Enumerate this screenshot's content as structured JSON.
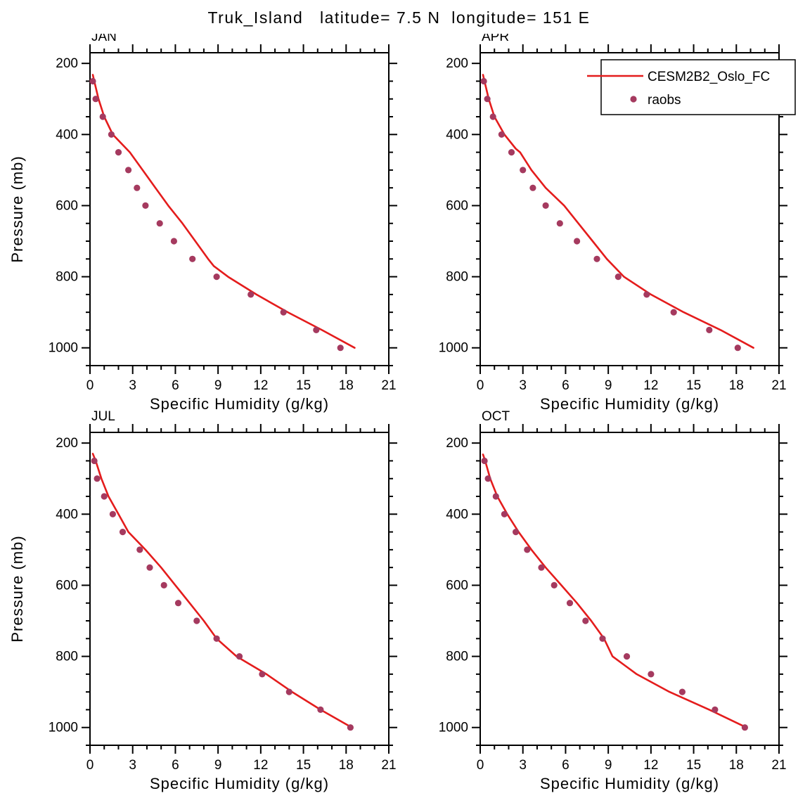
{
  "page_title": "Truk_Island   latitude= 7.5 N  longitude= 151 E",
  "legend": {
    "entries": [
      {
        "label": "CESM2B2_Oslo_FC",
        "type": "line",
        "color": "#e41c1c"
      },
      {
        "label": "raobs",
        "type": "dot",
        "color": "#a53a5f"
      }
    ]
  },
  "chart_data": [
    {
      "type": "line",
      "panel_label": "JAN",
      "xlabel": "Specific Humidity (g/kg)",
      "ylabel": "Pressure (mb)",
      "xlim": [
        0,
        21
      ],
      "xticks": [
        0,
        3,
        6,
        9,
        12,
        15,
        18,
        21
      ],
      "x_minor_step": 1,
      "ylim": [
        170,
        1050
      ],
      "yticks": [
        200,
        400,
        600,
        800,
        1000
      ],
      "y_minor_step": 50,
      "y_inverted": true,
      "grid": false,
      "series": [
        {
          "name": "CESM2B2_Oslo_FC",
          "type": "line",
          "color": "#e41c1c",
          "points": [
            [
              0.2,
              232
            ],
            [
              0.3,
              250
            ],
            [
              0.6,
              300
            ],
            [
              1.0,
              350
            ],
            [
              1.6,
              400
            ],
            [
              2.8,
              450
            ],
            [
              3.7,
              500
            ],
            [
              4.6,
              550
            ],
            [
              5.5,
              600
            ],
            [
              6.5,
              650
            ],
            [
              7.4,
              700
            ],
            [
              8.3,
              750
            ],
            [
              8.7,
              770
            ],
            [
              9.7,
              800
            ],
            [
              11.7,
              850
            ],
            [
              13.9,
              900
            ],
            [
              16.3,
              950
            ],
            [
              18.6,
              1000
            ]
          ]
        },
        {
          "name": "raobs",
          "type": "scatter",
          "color": "#a53a5f",
          "points": [
            [
              0.2,
              250
            ],
            [
              0.4,
              300
            ],
            [
              0.9,
              350
            ],
            [
              1.5,
              400
            ],
            [
              2.0,
              450
            ],
            [
              2.7,
              500
            ],
            [
              3.3,
              550
            ],
            [
              3.9,
              600
            ],
            [
              4.9,
              650
            ],
            [
              5.9,
              700
            ],
            [
              7.2,
              750
            ],
            [
              8.9,
              800
            ],
            [
              11.3,
              850
            ],
            [
              13.6,
              900
            ],
            [
              15.9,
              950
            ],
            [
              17.6,
              1000
            ]
          ]
        }
      ]
    },
    {
      "type": "line",
      "panel_label": "APR",
      "xlabel": "Specific Humidity (g/kg)",
      "ylabel": "Pressure (mb)",
      "xlim": [
        0,
        21
      ],
      "xticks": [
        0,
        3,
        6,
        9,
        12,
        15,
        18,
        21
      ],
      "x_minor_step": 1,
      "ylim": [
        170,
        1050
      ],
      "yticks": [
        200,
        400,
        600,
        800,
        1000
      ],
      "y_minor_step": 50,
      "y_inverted": true,
      "grid": false,
      "has_legend": true,
      "series": [
        {
          "name": "CESM2B2_Oslo_FC",
          "type": "line",
          "color": "#e41c1c",
          "points": [
            [
              0.2,
              232
            ],
            [
              0.3,
              250
            ],
            [
              0.6,
              300
            ],
            [
              1.0,
              350
            ],
            [
              1.7,
              400
            ],
            [
              2.5,
              440
            ],
            [
              2.8,
              450
            ],
            [
              3.6,
              500
            ],
            [
              4.6,
              550
            ],
            [
              5.9,
              600
            ],
            [
              6.9,
              650
            ],
            [
              7.9,
              700
            ],
            [
              8.9,
              750
            ],
            [
              10.1,
              800
            ],
            [
              12.0,
              850
            ],
            [
              14.3,
              900
            ],
            [
              16.9,
              950
            ],
            [
              19.2,
              1000
            ]
          ]
        },
        {
          "name": "raobs",
          "type": "scatter",
          "color": "#a53a5f",
          "points": [
            [
              0.25,
              250
            ],
            [
              0.5,
              300
            ],
            [
              0.9,
              350
            ],
            [
              1.5,
              400
            ],
            [
              2.2,
              450
            ],
            [
              3.0,
              500
            ],
            [
              3.7,
              550
            ],
            [
              4.6,
              600
            ],
            [
              5.6,
              650
            ],
            [
              6.8,
              700
            ],
            [
              8.2,
              750
            ],
            [
              9.7,
              800
            ],
            [
              11.7,
              850
            ],
            [
              13.6,
              900
            ],
            [
              16.1,
              950
            ],
            [
              18.1,
              1000
            ]
          ]
        }
      ]
    },
    {
      "type": "line",
      "panel_label": "JUL",
      "xlabel": "Specific Humidity (g/kg)",
      "ylabel": "Pressure (mb)",
      "xlim": [
        0,
        21
      ],
      "xticks": [
        0,
        3,
        6,
        9,
        12,
        15,
        18,
        21
      ],
      "x_minor_step": 1,
      "ylim": [
        170,
        1050
      ],
      "yticks": [
        200,
        400,
        600,
        800,
        1000
      ],
      "y_minor_step": 50,
      "y_inverted": true,
      "grid": false,
      "series": [
        {
          "name": "CESM2B2_Oslo_FC",
          "type": "line",
          "color": "#e41c1c",
          "points": [
            [
              0.2,
              230
            ],
            [
              0.4,
              250
            ],
            [
              0.8,
              300
            ],
            [
              1.3,
              350
            ],
            [
              2.0,
              400
            ],
            [
              2.7,
              450
            ],
            [
              3.9,
              500
            ],
            [
              5.0,
              550
            ],
            [
              6.0,
              600
            ],
            [
              7.0,
              650
            ],
            [
              8.0,
              700
            ],
            [
              8.9,
              750
            ],
            [
              10.3,
              800
            ],
            [
              12.4,
              850
            ],
            [
              14.2,
              900
            ],
            [
              16.2,
              950
            ],
            [
              18.4,
              1000
            ]
          ]
        },
        {
          "name": "raobs",
          "type": "scatter",
          "color": "#a53a5f",
          "points": [
            [
              0.3,
              250
            ],
            [
              0.5,
              300
            ],
            [
              1.0,
              350
            ],
            [
              1.6,
              400
            ],
            [
              2.3,
              450
            ],
            [
              3.5,
              500
            ],
            [
              4.2,
              550
            ],
            [
              5.2,
              600
            ],
            [
              6.2,
              650
            ],
            [
              7.5,
              700
            ],
            [
              8.9,
              750
            ],
            [
              10.5,
              800
            ],
            [
              12.1,
              850
            ],
            [
              14.0,
              900
            ],
            [
              16.2,
              950
            ],
            [
              18.3,
              1000
            ]
          ]
        }
      ]
    },
    {
      "type": "line",
      "panel_label": "OCT",
      "xlabel": "Specific Humidity (g/kg)",
      "ylabel": "Pressure (mb)",
      "xlim": [
        0,
        21
      ],
      "xticks": [
        0,
        3,
        6,
        9,
        12,
        15,
        18,
        21
      ],
      "x_minor_step": 1,
      "ylim": [
        170,
        1050
      ],
      "yticks": [
        200,
        400,
        600,
        800,
        1000
      ],
      "y_minor_step": 50,
      "y_inverted": true,
      "grid": false,
      "series": [
        {
          "name": "CESM2B2_Oslo_FC",
          "type": "line",
          "color": "#e41c1c",
          "points": [
            [
              0.2,
              232
            ],
            [
              0.35,
              250
            ],
            [
              0.7,
              300
            ],
            [
              1.2,
              350
            ],
            [
              1.9,
              400
            ],
            [
              2.7,
              450
            ],
            [
              3.6,
              500
            ],
            [
              4.6,
              550
            ],
            [
              5.7,
              600
            ],
            [
              6.8,
              650
            ],
            [
              7.8,
              700
            ],
            [
              8.7,
              750
            ],
            [
              9.3,
              800
            ],
            [
              11.0,
              850
            ],
            [
              13.3,
              900
            ],
            [
              16.1,
              950
            ],
            [
              18.7,
              1000
            ]
          ]
        },
        {
          "name": "raobs",
          "type": "scatter",
          "color": "#a53a5f",
          "points": [
            [
              0.3,
              250
            ],
            [
              0.55,
              300
            ],
            [
              1.1,
              350
            ],
            [
              1.7,
              400
            ],
            [
              2.5,
              450
            ],
            [
              3.3,
              500
            ],
            [
              4.3,
              550
            ],
            [
              5.2,
              600
            ],
            [
              6.3,
              650
            ],
            [
              7.4,
              700
            ],
            [
              8.6,
              750
            ],
            [
              10.3,
              800
            ],
            [
              12.0,
              850
            ],
            [
              14.2,
              900
            ],
            [
              16.5,
              950
            ],
            [
              18.6,
              1000
            ]
          ]
        }
      ]
    }
  ]
}
